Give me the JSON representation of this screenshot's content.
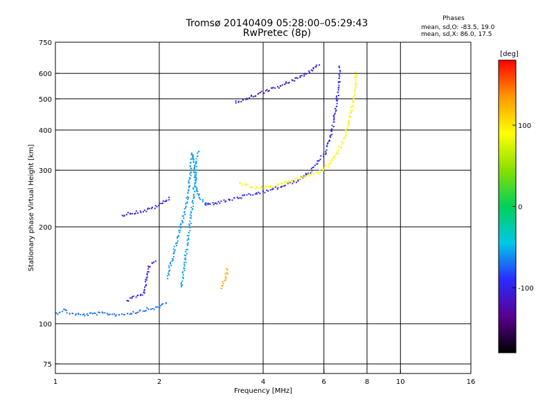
{
  "chart_data": {
    "type": "scatter",
    "title": "Tromsø 20140409 05:28:00–05:29:43",
    "subtitle": "RwPretec (8p)",
    "xlabel": "Frequency [MHz]",
    "ylabel": "Stationary phase Virtual Height [km]",
    "x_scale": "log",
    "y_scale": "log",
    "xlim": [
      1,
      16
    ],
    "ylim": [
      70,
      750
    ],
    "x_ticks": [
      1,
      2,
      4,
      6,
      8,
      10,
      16
    ],
    "x_tick_labels": [
      "1",
      "2",
      "4",
      "6",
      "8",
      "10",
      "16"
    ],
    "y_ticks": [
      75,
      100,
      200,
      300,
      400,
      500,
      600,
      750
    ],
    "y_tick_labels": [
      "75",
      "100",
      "200",
      "300",
      "400",
      "500",
      "600",
      "750"
    ],
    "grid": true,
    "colorbar": {
      "label": "[deg]",
      "range": [
        -180,
        180
      ],
      "ticks": [
        100,
        0,
        -100
      ],
      "tick_labels": [
        "100",
        "0",
        "-100"
      ],
      "colors": [
        "#000000",
        "#5a0090",
        "#2b2bff",
        "#00c8e6",
        "#00d05a",
        "#88e000",
        "#ffff00",
        "#ff9800",
        "#ff0000"
      ]
    },
    "phases_legend": {
      "title": "Phases",
      "o_line": "mean, sd,O: -83.5, 19.0",
      "x_line": "mean, sd,X: 86.0, 17.5"
    },
    "series": [
      {
        "points": [
          [
            1.0,
            108
          ],
          [
            1.05,
            111
          ],
          [
            1.1,
            108
          ],
          [
            1.2,
            107
          ],
          [
            1.3,
            108
          ],
          [
            1.4,
            108
          ],
          [
            1.5,
            107
          ],
          [
            1.6,
            108
          ],
          [
            1.7,
            109
          ],
          [
            1.8,
            111
          ],
          [
            1.9,
            112
          ],
          [
            2.0,
            113
          ],
          [
            2.05,
            116
          ],
          [
            2.1,
            118
          ]
        ],
        "phase": -70
      },
      {
        "points": [
          [
            1.6,
            118
          ],
          [
            1.7,
            122
          ],
          [
            1.8,
            125
          ],
          [
            1.85,
            150
          ],
          [
            1.95,
            160
          ]
        ],
        "phase": -100
      },
      {
        "points": [
          [
            1.55,
            218
          ],
          [
            1.65,
            222
          ],
          [
            1.8,
            225
          ],
          [
            1.95,
            232
          ],
          [
            2.05,
            240
          ],
          [
            2.15,
            248
          ]
        ],
        "phase": -105
      },
      {
        "points": [
          [
            2.1,
            140
          ],
          [
            2.2,
            170
          ],
          [
            2.3,
            200
          ],
          [
            2.38,
            230
          ],
          [
            2.42,
            260
          ],
          [
            2.45,
            300
          ],
          [
            2.48,
            340
          ],
          [
            2.52,
            300
          ],
          [
            2.55,
            270
          ],
          [
            2.6,
            245
          ],
          [
            2.7,
            240
          ],
          [
            2.8,
            238
          ]
        ],
        "phase": -60
      },
      {
        "points": [
          [
            2.3,
            130
          ],
          [
            2.35,
            150
          ],
          [
            2.4,
            180
          ],
          [
            2.45,
            210
          ],
          [
            2.5,
            250
          ],
          [
            2.55,
            320
          ],
          [
            2.6,
            350
          ]
        ],
        "phase": -55
      },
      {
        "points": [
          [
            2.7,
            235
          ],
          [
            3.0,
            240
          ],
          [
            3.5,
            250
          ],
          [
            4.0,
            258
          ],
          [
            4.5,
            268
          ],
          [
            5.0,
            280
          ],
          [
            5.5,
            300
          ],
          [
            6.0,
            340
          ],
          [
            6.3,
            400
          ],
          [
            6.5,
            480
          ],
          [
            6.6,
            560
          ],
          [
            6.65,
            640
          ]
        ],
        "phase": -95
      },
      {
        "points": [
          [
            3.3,
            488
          ],
          [
            3.6,
            505
          ],
          [
            4.0,
            528
          ],
          [
            4.4,
            548
          ],
          [
            4.8,
            570
          ],
          [
            5.2,
            595
          ],
          [
            5.6,
            625
          ],
          [
            5.8,
            645
          ]
        ],
        "phase": -110
      },
      {
        "points": [
          [
            3.4,
            275
          ],
          [
            3.8,
            265
          ],
          [
            4.3,
            268
          ],
          [
            4.8,
            280
          ],
          [
            5.4,
            290
          ],
          [
            5.9,
            300
          ],
          [
            6.3,
            320
          ],
          [
            6.7,
            360
          ],
          [
            7.0,
            410
          ],
          [
            7.2,
            470
          ],
          [
            7.35,
            540
          ],
          [
            7.4,
            620
          ]
        ],
        "phase": 95
      },
      {
        "points": [
          [
            3.0,
            130
          ],
          [
            3.1,
            140
          ],
          [
            3.15,
            150
          ]
        ],
        "phase": 130
      }
    ]
  }
}
